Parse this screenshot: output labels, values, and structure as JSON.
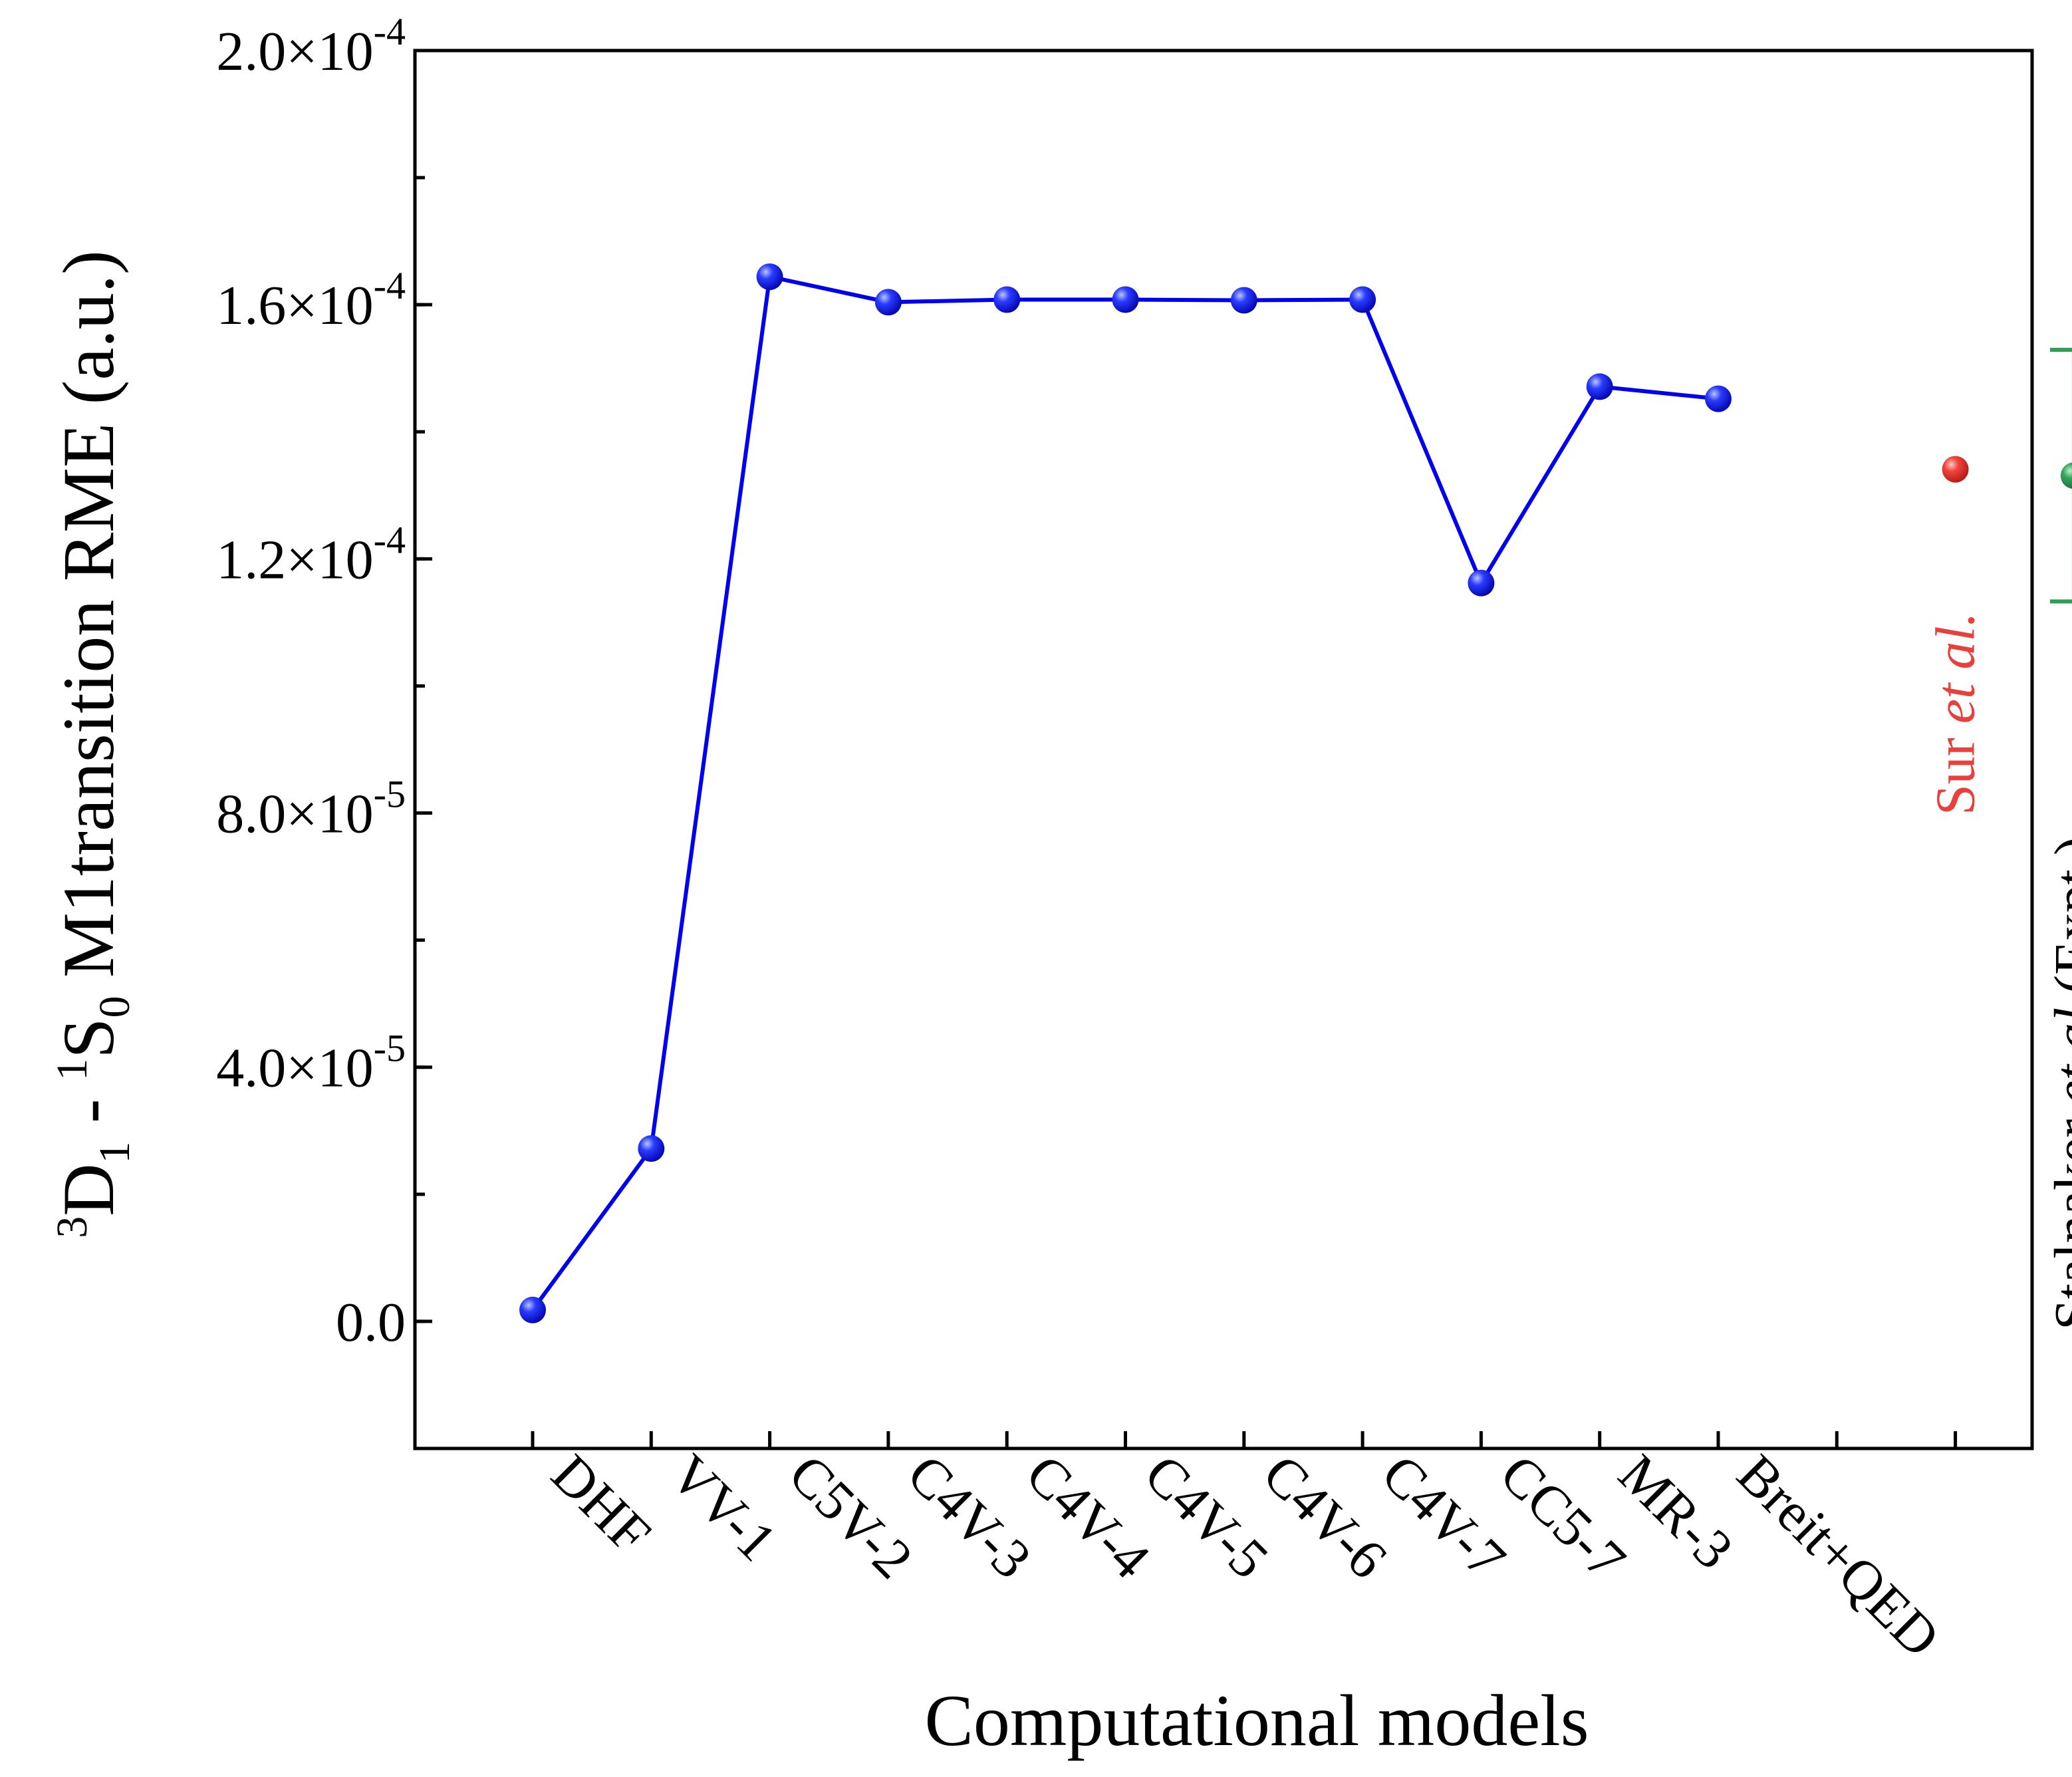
{
  "chart_data": {
    "type": "line",
    "title": "",
    "xlabel": "Computational models",
    "ylabel": {
      "left_part": "D",
      "sup1": "3",
      "sub1": "1",
      "middle": " - ",
      "sup2": "1",
      "main2": "S",
      "sub2": "0",
      "rest": " M1transition RME (a.u.)"
    },
    "ylim": [
      -2e-05,
      0.0002
    ],
    "y_ticks": [
      {
        "value": 0,
        "mantissa": "0.0",
        "exponent": ""
      },
      {
        "value": 4e-05,
        "mantissa": "4.0×10",
        "exponent": "-5"
      },
      {
        "value": 8e-05,
        "mantissa": "8.0×10",
        "exponent": "-5"
      },
      {
        "value": 0.00012,
        "mantissa": "1.2×10",
        "exponent": "-4"
      },
      {
        "value": 0.00016,
        "mantissa": "1.6×10",
        "exponent": "-4"
      },
      {
        "value": 0.0002,
        "mantissa": "2.0×10",
        "exponent": "-4"
      }
    ],
    "categories": [
      "DHF",
      "VV-1",
      "C5V-2",
      "C4V-3",
      "C4V-4",
      "C4V-5",
      "C4V-6",
      "C4V-7",
      "CC5-7",
      "MR-3",
      "Breit+QED"
    ],
    "series": [
      {
        "name": "Computational models",
        "color": "#0000ee",
        "values": [
          1.8e-06,
          2.72e-05,
          0.0001644,
          0.0001604,
          0.0001608,
          0.0001608,
          0.0001607,
          0.0001608,
          0.0001162,
          0.0001471,
          0.0001452
        ]
      }
    ],
    "reference_points": [
      {
        "name": "Sur",
        "label": "Sur ",
        "label_italic": "et al.",
        "label_suffix": "",
        "color": "#e8403c",
        "slot": 12,
        "value": 0.0001341
      },
      {
        "name": "Stalnaker",
        "label": "Stalnaker ",
        "label_italic": "et al.",
        "label_suffix": "(Expt.)",
        "color": "#2e9e55",
        "slot": 13,
        "value": 0.0001331,
        "err_low": 0.0001133,
        "err_high": 0.0001529
      }
    ]
  }
}
